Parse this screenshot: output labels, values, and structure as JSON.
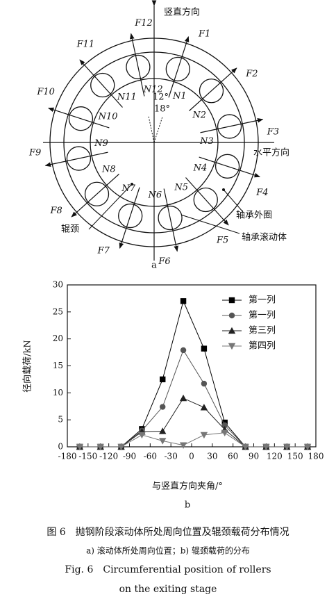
{
  "diagram": {
    "vertical_label": "竖直方向",
    "horizontal_label": "水平方向",
    "forces": [
      "F1",
      "F2",
      "F3",
      "F4",
      "F5",
      "F6",
      "F7",
      "F8",
      "F9",
      "F10",
      "F11",
      "F12"
    ],
    "rollers": [
      "N1",
      "N2",
      "N3",
      "N4",
      "N5",
      "N6",
      "N7",
      "N8",
      "N9",
      "N10",
      "N11",
      "N12"
    ],
    "angle_left": "12°",
    "angle_right": "18°",
    "outer_ring_label": "轴承外圈",
    "roller_label": "轴承滚动体",
    "journal_label": "辊颈",
    "panel_label": "a"
  },
  "chart_data": {
    "type": "line",
    "panel_label": "b",
    "x_label": "与竖直方向夹角/°",
    "y_label": "径向载荷/kN",
    "x": [
      -162,
      -132,
      -102,
      -72,
      -42,
      -12,
      18,
      48,
      78,
      108,
      138,
      168
    ],
    "series": [
      {
        "name": "第一列",
        "color": "#000000",
        "marker": "square",
        "values": [
          0,
          0,
          0,
          3.3,
          12.5,
          27,
          18.2,
          4.5,
          0,
          0,
          0,
          0
        ]
      },
      {
        "name": "第一列",
        "color": "#555555",
        "marker": "circle",
        "values": [
          0,
          0,
          0,
          3,
          7.4,
          17.9,
          11.7,
          4,
          0,
          0,
          0,
          0
        ]
      },
      {
        "name": "第三列",
        "color": "#222222",
        "marker": "triangle",
        "values": [
          0,
          0,
          0,
          2.8,
          2.9,
          9,
          7.3,
          3.2,
          0,
          0,
          0,
          0
        ]
      },
      {
        "name": "第四列",
        "color": "#777777",
        "marker": "down-triangle",
        "values": [
          0,
          0,
          0,
          2.2,
          1.1,
          0.3,
          2.2,
          2.6,
          0,
          0,
          0,
          0
        ]
      }
    ],
    "xlim": [
      -180,
      180
    ],
    "xticks": [
      -180,
      -150,
      -120,
      -90,
      -60,
      -30,
      0,
      30,
      60,
      90,
      120,
      150,
      180
    ],
    "ylim": [
      0,
      30
    ],
    "yticks": [
      0,
      5,
      10,
      15,
      20,
      25,
      30
    ],
    "legend": "upper right"
  },
  "caption": {
    "line1": "图 6　抛钢阶段滚动体所处周向位置及辊颈载荷分布情况",
    "line2": "a) 滚动体所处周向位置；b) 辊颈载荷的分布",
    "line3": "Fig. 6　Circumferential position of rollers",
    "line4": "on the exiting stage"
  }
}
